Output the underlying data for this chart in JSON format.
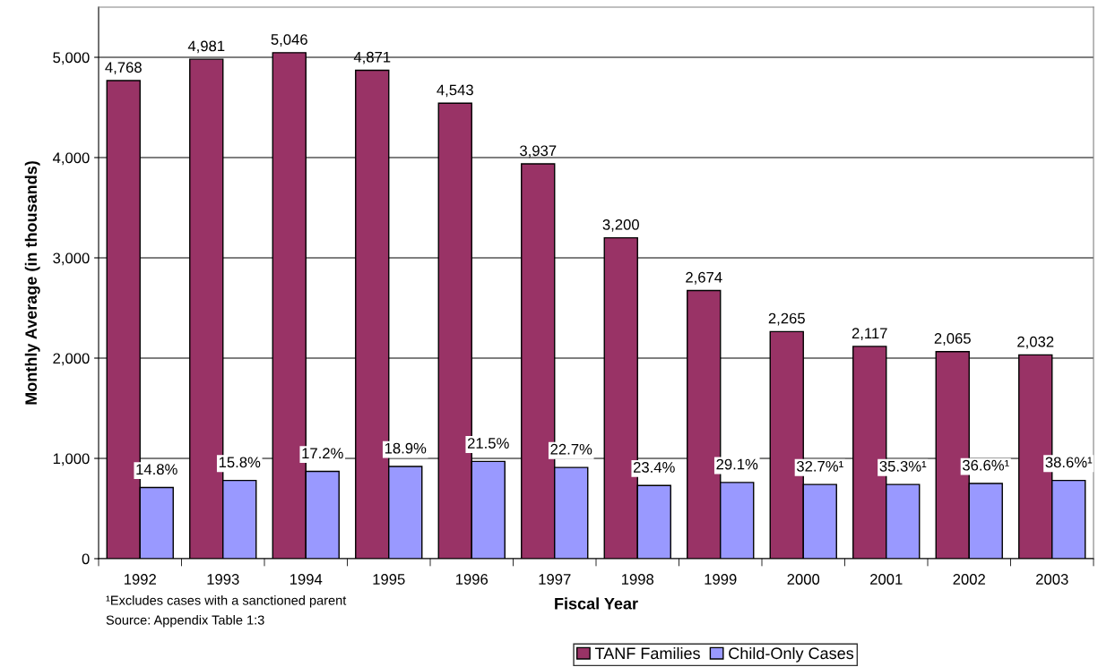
{
  "chart_data": {
    "type": "bar",
    "xlabel": "Fiscal Year",
    "ylabel": "Monthly Average (in thousands)",
    "categories": [
      "1992",
      "1993",
      "1994",
      "1995",
      "1996",
      "1997",
      "1998",
      "1999",
      "2000",
      "2001",
      "2002",
      "2003"
    ],
    "series": [
      {
        "name": "TANF Families",
        "color": "#993366",
        "values": [
          4768,
          4981,
          5046,
          4871,
          4543,
          3937,
          3200,
          2674,
          2265,
          2117,
          2065,
          2032
        ],
        "value_labels": [
          "4,768",
          "4,981",
          "5,046",
          "4,871",
          "4,543",
          "3,937",
          "3,200",
          "2,674",
          "2,265",
          "2,117",
          "2,065",
          "2,032"
        ]
      },
      {
        "name": "Child-Only Cases",
        "color": "#9999ff",
        "values": [
          710,
          780,
          870,
          920,
          970,
          910,
          730,
          760,
          740,
          740,
          750,
          780
        ]
      }
    ],
    "ylim": [
      0,
      5500
    ],
    "yticks": [
      0,
      {
        "value": 1000,
        "label": "1,000"
      },
      {
        "value": 2000,
        "label": "2,000"
      },
      {
        "value": 3000,
        "label": "3,000"
      },
      {
        "value": 4000,
        "label": "4,000"
      },
      {
        "value": 5000,
        "label": "5,000"
      }
    ],
    "grid": "y",
    "legend": "bottom",
    "annotations": [
      {
        "text": "14.8%",
        "x": "1992",
        "y": 710
      },
      {
        "text": "15.8%",
        "x": "1993",
        "y": 780
      },
      {
        "text": "17.2%",
        "x": "1994",
        "y": 870
      },
      {
        "text": "18.9%",
        "x": "1995",
        "y": 920
      },
      {
        "text": "21.5%",
        "x": "1996",
        "y": 970
      },
      {
        "text": "22.7%",
        "x": "1997",
        "y": 910
      },
      {
        "text": "23.4%",
        "x": "1998",
        "y": 730
      },
      {
        "text": "29.1%",
        "x": "1999",
        "y": 760
      },
      {
        "text": "32.7%¹",
        "x": "2000",
        "y": 740
      },
      {
        "text": "35.3%¹",
        "x": "2001",
        "y": 740
      },
      {
        "text": "36.6%¹",
        "x": "2002",
        "y": 750
      },
      {
        "text": "38.6%¹",
        "x": "2003",
        "y": 780
      },
      "¹Excludes cases with a sanctioned parent",
      "Source: Appendix Table 1:3"
    ]
  }
}
